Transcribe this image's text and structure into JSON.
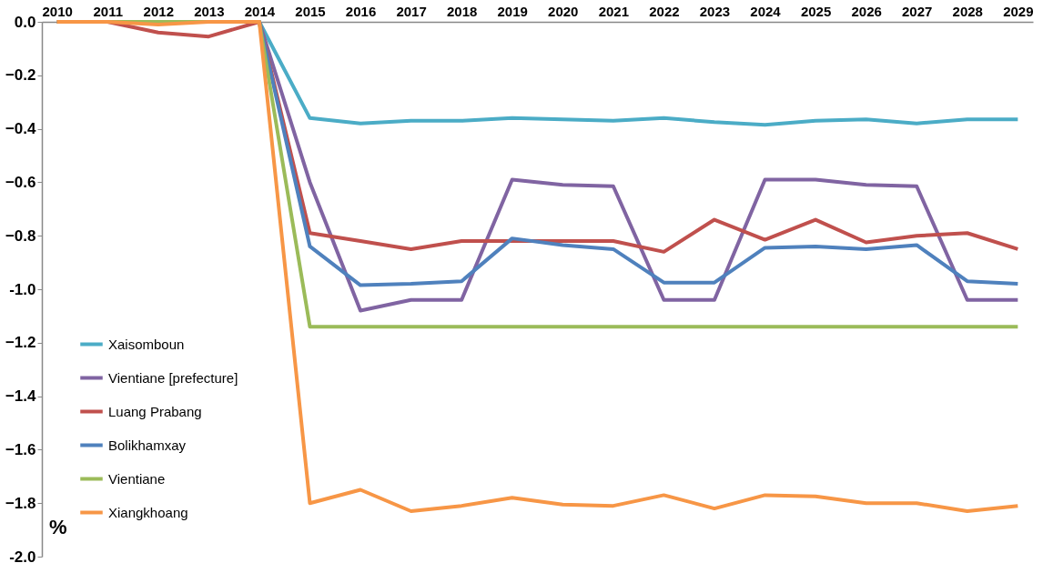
{
  "chart_data": {
    "type": "line",
    "categories": [
      "2010",
      "2011",
      "2012",
      "2013",
      "2014",
      "2015",
      "2016",
      "2017",
      "2018",
      "2019",
      "2020",
      "2021",
      "2022",
      "2023",
      "2024",
      "2025",
      "2026",
      "2027",
      "2028",
      "2029"
    ],
    "series": [
      {
        "name": "Xaisomboun",
        "color": "#4bacc6",
        "values": [
          null,
          null,
          null,
          0,
          0,
          -0.36,
          -0.38,
          -0.37,
          -0.37,
          -0.36,
          -0.365,
          -0.37,
          -0.36,
          -0.375,
          -0.385,
          -0.37,
          -0.365,
          -0.38,
          -0.365,
          -0.365
        ]
      },
      {
        "name": "Vientiane [prefecture]",
        "color": "#8064a2",
        "values": [
          0,
          0,
          0,
          0,
          0,
          -0.6,
          -1.08,
          -1.04,
          -1.04,
          -0.59,
          -0.61,
          -0.615,
          -1.04,
          -1.04,
          -0.59,
          -0.59,
          -0.61,
          -0.615,
          -1.04,
          -1.04
        ]
      },
      {
        "name": "Luang Prabang",
        "color": "#c0504d",
        "values": [
          0,
          0,
          -0.04,
          -0.055,
          0,
          -0.79,
          -0.82,
          -0.85,
          -0.82,
          -0.82,
          -0.82,
          -0.82,
          -0.86,
          -0.74,
          -0.815,
          -0.74,
          -0.825,
          -0.8,
          -0.79,
          -0.85
        ]
      },
      {
        "name": "Bolikhamxay",
        "color": "#4f81bd",
        "values": [
          null,
          null,
          null,
          0,
          0,
          -0.84,
          -0.985,
          -0.98,
          -0.97,
          -0.81,
          -0.835,
          -0.85,
          -0.975,
          -0.975,
          -0.845,
          -0.84,
          -0.85,
          -0.835,
          -0.97,
          -0.98
        ]
      },
      {
        "name": "Vientiane",
        "color": "#9bbb59",
        "values": [
          0,
          0,
          0,
          0,
          0,
          -1.14,
          -1.14,
          -1.14,
          -1.14,
          -1.14,
          -1.14,
          -1.14,
          -1.14,
          -1.14,
          -1.14,
          -1.14,
          -1.14,
          -1.14,
          -1.14,
          -1.14
        ]
      },
      {
        "name": "Xiangkhoang",
        "color": "#f79646",
        "values": [
          0,
          0,
          -0.01,
          0,
          0,
          -1.8,
          -1.75,
          -1.83,
          -1.81,
          -1.78,
          -1.805,
          -1.81,
          -1.77,
          -1.82,
          -1.77,
          -1.775,
          -1.8,
          -1.8,
          -1.83,
          -1.81
        ]
      }
    ],
    "ylim": [
      -2.0,
      0.0
    ],
    "yticks": [
      {
        "value": -2.0,
        "label": "-2.0"
      },
      -1.8,
      -1.6,
      -1.4,
      -1.2,
      {
        "value": -1.0,
        "label": "-1.0"
      },
      -0.8,
      -0.6,
      -0.4,
      -0.2,
      {
        "value": 0.0,
        "label": "0.0"
      }
    ],
    "grid": false,
    "legend": "bottom left",
    "annotations": [
      "%"
    ]
  }
}
